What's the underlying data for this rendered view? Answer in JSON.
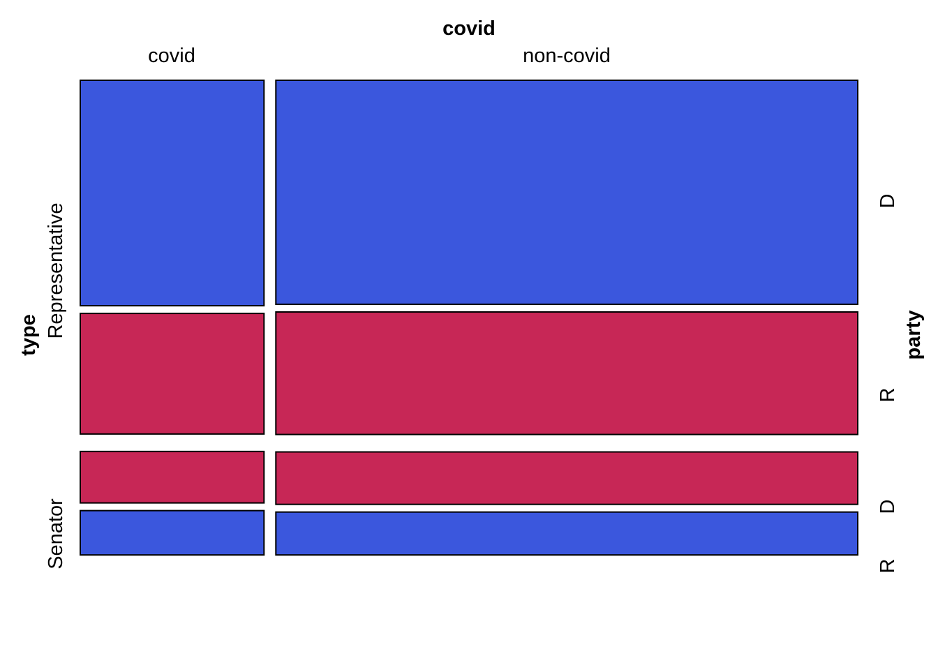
{
  "chart_data": {
    "type": "mosaic",
    "top_variable": "covid",
    "left_variable": "type",
    "right_variable": "party",
    "columns": [
      "covid",
      "non-covid"
    ],
    "rows": [
      "Representative",
      "Senator"
    ],
    "right_labels": {
      "Representative": [
        "D",
        "R"
      ],
      "Senator": [
        "D",
        "R"
      ]
    },
    "column_proportions": [
      0.24,
      0.76
    ],
    "cells": [
      {
        "column": "covid",
        "type": "Representative",
        "party": "D",
        "proportion": 0.473,
        "color": "#3b57dd"
      },
      {
        "column": "covid",
        "type": "Representative",
        "party": "R",
        "proportion": 0.253,
        "color": "#c72756"
      },
      {
        "column": "covid",
        "type": "Senator",
        "party": "D",
        "proportion": 0.108,
        "color": "#c72756"
      },
      {
        "column": "covid",
        "type": "Senator",
        "party": "R",
        "proportion": 0.093,
        "color": "#3b57dd"
      },
      {
        "column": "non-covid",
        "type": "Representative",
        "party": "D",
        "proportion": 0.47,
        "color": "#3b57dd"
      },
      {
        "column": "non-covid",
        "type": "Representative",
        "party": "R",
        "proportion": 0.257,
        "color": "#c72756"
      },
      {
        "column": "non-covid",
        "type": "Senator",
        "party": "D",
        "proportion": 0.11,
        "color": "#c72756"
      },
      {
        "column": "non-covid",
        "type": "Senator",
        "party": "R",
        "proportion": 0.09,
        "color": "#3b57dd"
      }
    ]
  }
}
